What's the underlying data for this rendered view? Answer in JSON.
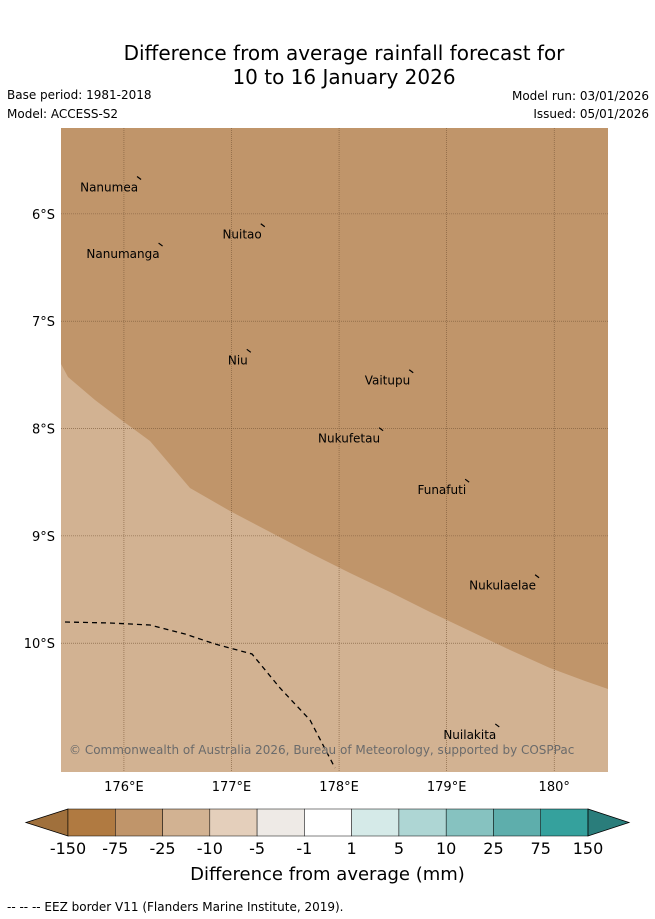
{
  "title_line1": "Difference from average rainfall forecast for",
  "title_line2": "10 to 16 January 2026",
  "base_period": "Base period: 1981-2018",
  "model": "Model: ACCESS-S2",
  "model_run": "Model run: 03/01/2026",
  "issued": "Issued: 05/01/2026",
  "copyright": "© Commonwealth of Australia 2026, Bureau of Meteorology, supported by COSPPac",
  "lat_labels": [
    "6°S",
    "7°S",
    "8°S",
    "9°S",
    "10°S"
  ],
  "lon_labels": [
    "176°E",
    "177°E",
    "178°E",
    "179°E",
    "180°"
  ],
  "islands": [
    {
      "name": "Nanumea",
      "lon": 176.15,
      "lat": -5.68
    },
    {
      "name": "Nuitao",
      "lon": 177.3,
      "lat": -6.12
    },
    {
      "name": "Nanumanga",
      "lon": 176.35,
      "lat": -6.3
    },
    {
      "name": "Niu",
      "lon": 177.17,
      "lat": -7.29
    },
    {
      "name": "Vaitupu",
      "lon": 178.68,
      "lat": -7.48
    },
    {
      "name": "Nukufetau",
      "lon": 178.4,
      "lat": -8.02
    },
    {
      "name": "Funafuti",
      "lon": 179.2,
      "lat": -8.5
    },
    {
      "name": "Nukulaelae",
      "lon": 179.85,
      "lat": -9.39
    },
    {
      "name": "Nuilakita",
      "lon": 179.48,
      "lat": -10.78
    }
  ],
  "colorbar": {
    "labels": [
      "-150",
      "-75",
      "-25",
      "-10",
      "-5",
      "-1",
      "1",
      "5",
      "10",
      "25",
      "75",
      "150"
    ],
    "colors": [
      "#a0703c",
      "#b07a41",
      "#c0956a",
      "#d2b292",
      "#e4cfbb",
      "#eeeae6",
      "#ffffff",
      "#d5eae8",
      "#aed6d4",
      "#86c2c0",
      "#5eaeac",
      "#35a19d",
      "#2a7d7b"
    ],
    "title": "Difference from average (mm)"
  },
  "legend_note": "--  --  -- EEZ border V11 (Flanders Marine Institute, 2019).",
  "category_colors": {
    "minus25_to_minus10": "#c0956a",
    "minus10_to_minus5": "#d2b292"
  }
}
